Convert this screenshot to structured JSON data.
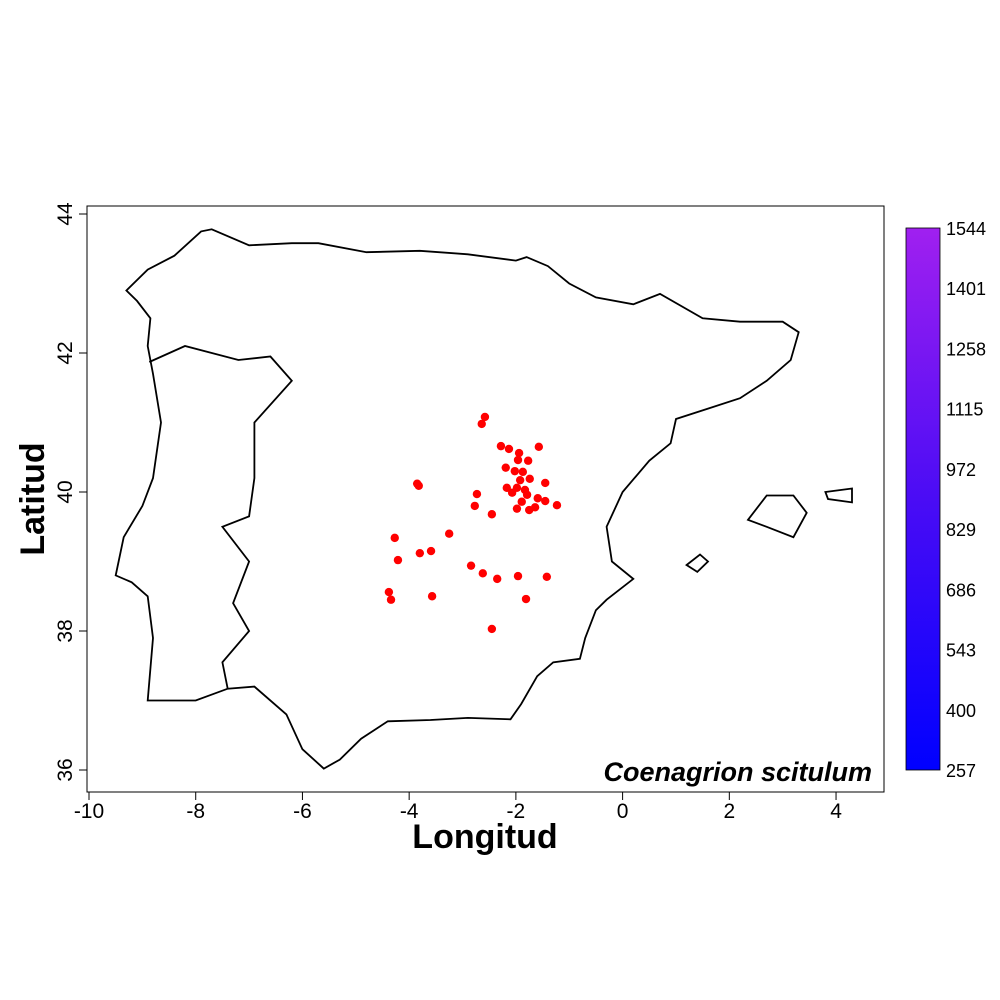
{
  "chart_data": {
    "type": "scatter",
    "title": "Coenagrion scitulum",
    "xlabel": "Longitud",
    "ylabel": "Latitud",
    "xlim": [
      -10,
      4.9
    ],
    "ylim": [
      35.8,
      44.1
    ],
    "x_ticks": [
      -10,
      -8,
      -6,
      -4,
      -2,
      0,
      2,
      4
    ],
    "x_tick_labels": [
      "-10",
      "-8",
      "-6",
      "-4",
      "-2",
      "0",
      "2",
      "4"
    ],
    "y_ticks": [
      36,
      38,
      40,
      42,
      44
    ],
    "y_tick_labels": [
      "36",
      "38",
      "40",
      "42",
      "44"
    ],
    "background": "raster surface with contour lines over the Iberian Peninsula and Balearic Islands",
    "point_color": "#FF0000",
    "points": [
      [
        -2.58,
        41.08
      ],
      [
        -2.64,
        40.98
      ],
      [
        -2.28,
        40.66
      ],
      [
        -2.13,
        40.62
      ],
      [
        -1.57,
        40.65
      ],
      [
        -1.94,
        40.56
      ],
      [
        -1.96,
        40.46
      ],
      [
        -1.77,
        40.45
      ],
      [
        -2.19,
        40.35
      ],
      [
        -2.02,
        40.3
      ],
      [
        -1.87,
        40.29
      ],
      [
        -1.74,
        40.19
      ],
      [
        -1.92,
        40.17
      ],
      [
        -1.45,
        40.13
      ],
      [
        -2.17,
        40.06
      ],
      [
        -1.98,
        40.06
      ],
      [
        -1.83,
        40.03
      ],
      [
        -2.07,
        39.99
      ],
      [
        -1.79,
        39.96
      ],
      [
        -2.73,
        39.97
      ],
      [
        -1.59,
        39.91
      ],
      [
        -1.45,
        39.87
      ],
      [
        -1.89,
        39.86
      ],
      [
        -2.77,
        39.8
      ],
      [
        -1.23,
        39.81
      ],
      [
        -1.98,
        39.76
      ],
      [
        -1.75,
        39.74
      ],
      [
        -1.64,
        39.78
      ],
      [
        -2.45,
        39.68
      ],
      [
        -3.25,
        39.4
      ],
      [
        -2.84,
        38.94
      ],
      [
        -2.62,
        38.83
      ],
      [
        -2.35,
        38.75
      ],
      [
        -1.96,
        38.79
      ],
      [
        -1.42,
        38.78
      ],
      [
        -1.81,
        38.46
      ],
      [
        -3.85,
        40.12
      ],
      [
        -3.82,
        40.09
      ],
      [
        -4.27,
        39.34
      ],
      [
        -4.21,
        39.02
      ],
      [
        -3.8,
        39.12
      ],
      [
        -3.59,
        39.15
      ],
      [
        -4.38,
        38.56
      ],
      [
        -4.34,
        38.45
      ],
      [
        -3.57,
        38.5
      ],
      [
        -2.45,
        38.03
      ]
    ],
    "legend": {
      "type": "colorbar",
      "placement": "right",
      "color_low": "#0000FF",
      "color_high": "#A020F0",
      "labels": [
        "1544",
        "1401",
        "1258",
        "1115",
        "972",
        "829",
        "686",
        "543",
        "400",
        "257"
      ]
    }
  }
}
